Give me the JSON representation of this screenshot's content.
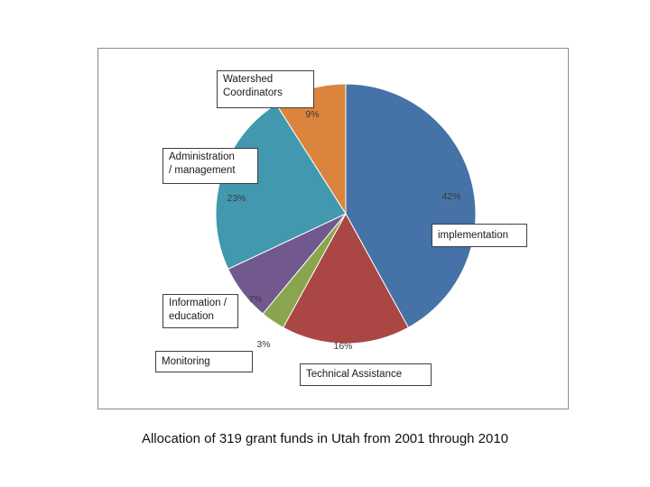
{
  "chart_data": {
    "type": "pie",
    "title": "",
    "slices": [
      {
        "label": "implementation",
        "value": 42,
        "value_label": "42%",
        "color": "#4572a7"
      },
      {
        "label": "Technical Assistance",
        "value": 16,
        "value_label": "16%",
        "color": "#aa4643"
      },
      {
        "label": "Monitoring",
        "value": 3,
        "value_label": "3%",
        "color": "#89a54e"
      },
      {
        "label": "Information / education",
        "value": 7,
        "value_label": "7%",
        "color": "#71588f"
      },
      {
        "label": "Administration / management",
        "value": 23,
        "value_label": "23%",
        "color": "#4198af"
      },
      {
        "label": "Watershed Coordinators",
        "value": 9,
        "value_label": "9%",
        "color": "#db843d"
      }
    ]
  },
  "labels": {
    "watershed_line1": "Watershed",
    "watershed_line2": "Coordinators",
    "admin_line1": "Administration",
    "admin_line2": "/ management",
    "implementation": "implementation",
    "info_line1": "Information /",
    "info_line2": "education",
    "monitoring": "Monitoring",
    "technical": "Technical Assistance"
  },
  "caption": "Allocation of 319 grant funds in Utah from 2001  through 2010"
}
